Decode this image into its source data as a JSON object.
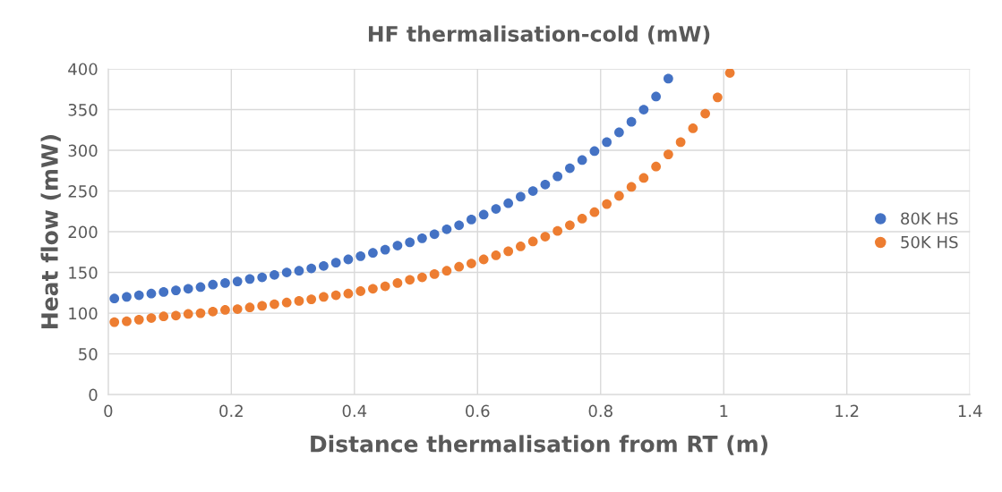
{
  "chart_data": {
    "type": "scatter",
    "title": "HF thermalisation-cold (mW)",
    "xlabel": "Distance thermalisation from RT (m)",
    "ylabel": "Heat flow (mW)",
    "xlim": [
      0,
      1.4
    ],
    "xticks": [
      0,
      0.2,
      0.4,
      0.6,
      0.8,
      1,
      1.2,
      1.4
    ],
    "ylim": [
      0,
      400
    ],
    "yticks": [
      0,
      50,
      100,
      150,
      200,
      250,
      300,
      350,
      400
    ],
    "grid": true,
    "legend": "right",
    "marker": "circle",
    "series": [
      {
        "name": "80K HS",
        "color": "#4472c4",
        "x": [
          0.01,
          0.03,
          0.05,
          0.07,
          0.09,
          0.11,
          0.13,
          0.15,
          0.17,
          0.19,
          0.21,
          0.23,
          0.25,
          0.27,
          0.29,
          0.31,
          0.33,
          0.35,
          0.37,
          0.39,
          0.41,
          0.43,
          0.45,
          0.47,
          0.49,
          0.51,
          0.53,
          0.55,
          0.57,
          0.59,
          0.61,
          0.63,
          0.65,
          0.67,
          0.69,
          0.71,
          0.73,
          0.75,
          0.77,
          0.79,
          0.81,
          0.83,
          0.85,
          0.87,
          0.89,
          0.91
        ],
        "values": [
          118,
          120,
          122,
          124,
          126,
          128,
          130,
          132,
          135,
          137,
          139,
          142,
          144,
          147,
          150,
          152,
          155,
          158,
          162,
          166,
          170,
          174,
          178,
          183,
          187,
          192,
          197,
          203,
          208,
          215,
          221,
          228,
          235,
          243,
          250,
          258,
          268,
          278,
          288,
          299,
          310,
          322,
          335,
          350,
          366,
          388
        ]
      },
      {
        "name": "50K HS",
        "color": "#ed7d31",
        "x": [
          0.01,
          0.03,
          0.05,
          0.07,
          0.09,
          0.11,
          0.13,
          0.15,
          0.17,
          0.19,
          0.21,
          0.23,
          0.25,
          0.27,
          0.29,
          0.31,
          0.33,
          0.35,
          0.37,
          0.39,
          0.41,
          0.43,
          0.45,
          0.47,
          0.49,
          0.51,
          0.53,
          0.55,
          0.57,
          0.59,
          0.61,
          0.63,
          0.65,
          0.67,
          0.69,
          0.71,
          0.73,
          0.75,
          0.77,
          0.79,
          0.81,
          0.83,
          0.85,
          0.87,
          0.89,
          0.91,
          0.93,
          0.95,
          0.97,
          0.99,
          1.01
        ],
        "values": [
          89,
          90,
          92,
          94,
          96,
          97,
          99,
          100,
          102,
          104,
          105,
          107,
          109,
          111,
          113,
          115,
          117,
          120,
          122,
          124,
          127,
          130,
          133,
          137,
          141,
          144,
          148,
          152,
          157,
          161,
          166,
          171,
          176,
          182,
          188,
          194,
          201,
          208,
          216,
          224,
          234,
          244,
          255,
          266,
          280,
          295,
          310,
          327,
          345,
          365,
          395
        ]
      }
    ]
  }
}
